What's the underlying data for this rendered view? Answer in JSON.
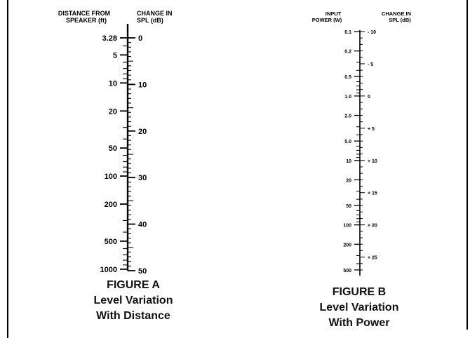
{
  "figure_a": {
    "left_header": [
      "DISTANCE FROM",
      "SPEAKER (ft)"
    ],
    "right_header": [
      "CHANGE IN",
      "SPL (dB)"
    ],
    "caption": [
      "FIGURE A",
      "Level Variation",
      "With Distance"
    ],
    "left_scale_labels": [
      "3.28",
      "5",
      "10",
      "20",
      "50",
      "100",
      "200",
      "500",
      "1000"
    ],
    "right_scale_labels": [
      "0",
      "10",
      "20",
      "30",
      "40",
      "50"
    ]
  },
  "figure_b": {
    "left_header": [
      "INPUT",
      "POWER (W)"
    ],
    "right_header": [
      "CHANGE IN",
      "SPL (dB)"
    ],
    "caption": [
      "FIGURE B",
      "Level Variation",
      "With Power"
    ],
    "left_scale_labels": [
      "0.1",
      "0.2",
      "0.5",
      "1.0",
      "2.0",
      "5.0",
      "10",
      "20",
      "50",
      "100",
      "200",
      "500"
    ],
    "right_scale_labels": [
      "- 10",
      "- 5",
      "0",
      "+ 5",
      "+ 10",
      "+ 15",
      "+ 20",
      "+ 25"
    ]
  },
  "style": {
    "ink": "#000000",
    "paper": "#ffffff"
  }
}
